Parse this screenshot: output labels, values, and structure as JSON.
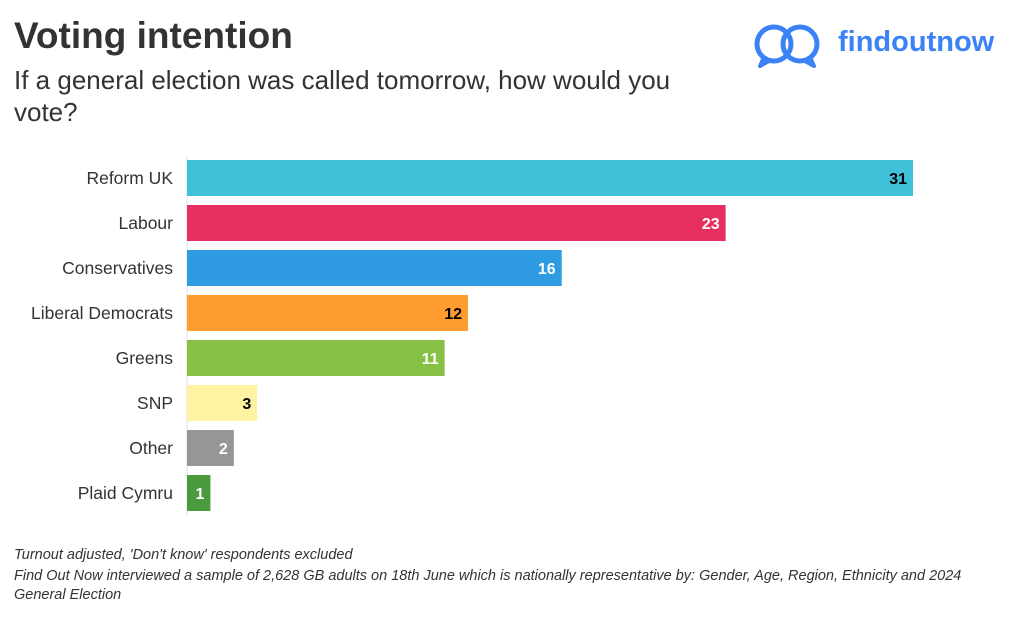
{
  "header": {
    "title": "Voting intention",
    "subtitle": "If a general election was called tomorrow, how would you vote?"
  },
  "brand": {
    "logo_text": "findoutnow",
    "logo_icon": "speech-bubbles-icon",
    "color": "#3b82f6"
  },
  "chart_data": {
    "type": "bar",
    "orientation": "horizontal",
    "title": "Voting intention",
    "subtitle": "If a general election was called tomorrow, how would you vote?",
    "categories": [
      "Reform UK",
      "Labour",
      "Conservatives",
      "Liberal Democrats",
      "Greens",
      "SNP",
      "Other",
      "Plaid Cymru"
    ],
    "values": [
      31,
      23,
      16,
      12,
      11,
      3,
      2,
      1
    ],
    "colors": [
      "#41c0d9",
      "#e62e5f",
      "#2e9be3",
      "#ff9e2f",
      "#86c044",
      "#fff3a3",
      "#969696",
      "#4c9a3e"
    ],
    "label_colors": [
      "#000000",
      "#ffffff",
      "#ffffff",
      "#000000",
      "#ffffff",
      "#000000",
      "#ffffff",
      "#ffffff"
    ],
    "xlim": [
      0,
      31
    ],
    "grid": false,
    "legend": "none"
  },
  "footnotes": {
    "line1": "Turnout adjusted, 'Don't know' respondents excluded",
    "line2": "Find Out Now interviewed a sample of 2,628 GB adults on 18th June which is nationally representative by: Gender, Age, Region, Ethnicity and 2024 General Election"
  }
}
